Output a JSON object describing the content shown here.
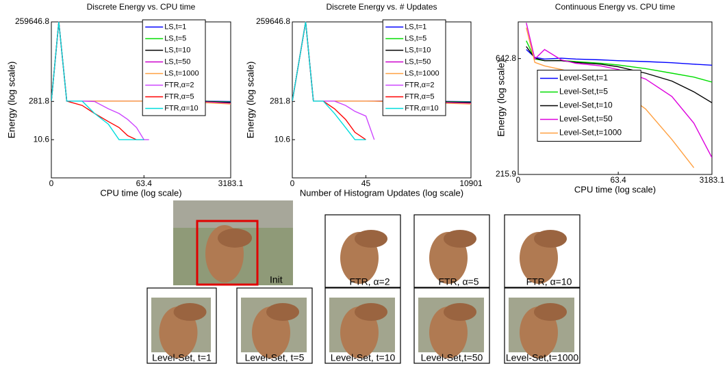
{
  "chart_data": [
    {
      "type": "line",
      "title": "Discrete Energy vs. CPU time",
      "x_label": "CPU time (log scale)",
      "y_label": "Energy (log scale)",
      "xscale": "log",
      "yscale": "log",
      "legend": "upper right",
      "xlim": [
        0,
        3183.1
      ],
      "xticks": [
        0,
        63.4,
        3183.1
      ],
      "ylim": [
        0.4,
        259646.8
      ],
      "yticks": [
        10.6,
        281.8,
        259646.8
      ],
      "x": [
        0,
        0.4,
        1,
        3,
        6,
        12,
        20,
        30,
        45,
        63.4,
        80,
        300,
        1000,
        3183.1
      ],
      "series": [
        {
          "name": "LS,t=1",
          "color": "#0000ff",
          "values": [
            290,
            259646.8,
            290,
            290,
            290,
            290,
            290,
            290,
            290,
            290,
            290,
            290,
            290,
            280
          ]
        },
        {
          "name": "LS,t=5",
          "color": "#00dd00",
          "values": [
            290,
            259646.8,
            290,
            290,
            290,
            290,
            290,
            290,
            290,
            290,
            290,
            290,
            285,
            265
          ]
        },
        {
          "name": "LS,t=10",
          "color": "#000000",
          "values": [
            290,
            259646.8,
            290,
            290,
            290,
            290,
            290,
            290,
            290,
            290,
            290,
            290,
            280,
            255
          ]
        },
        {
          "name": "LS,t=50",
          "color": "#cc00cc",
          "values": [
            290,
            259646.8,
            290,
            290,
            290,
            290,
            290,
            290,
            290,
            290,
            290,
            285,
            270,
            240
          ]
        },
        {
          "name": "LS,t=1000",
          "color": "#ffa040",
          "values": [
            290,
            259646.8,
            290,
            290,
            290,
            290,
            290,
            290,
            290,
            290,
            285,
            275,
            255,
            225
          ]
        },
        {
          "name": "FTR,α=2",
          "color": "#cc44ff",
          "values": [
            290,
            259646.8,
            290,
            290,
            280,
            150,
            100,
            60,
            30,
            10.6,
            10.6,
            null,
            null,
            null
          ]
        },
        {
          "name": "FTR,α=5",
          "color": "#ff0000",
          "values": [
            290,
            259646.8,
            290,
            200,
            100,
            50,
            30,
            15,
            10.6,
            10.6,
            null,
            null,
            null,
            null
          ]
        },
        {
          "name": "FTR,α=10",
          "color": "#00dddd",
          "values": [
            290,
            259646.8,
            290,
            290,
            100,
            40,
            10.6,
            10.6,
            10.6,
            10.6,
            null,
            null,
            null,
            null
          ]
        }
      ]
    },
    {
      "type": "line",
      "title": "Discrete Energy vs. # Updates",
      "x_label": "Number of Histogram Updates (log scale)",
      "y_label": "Energy (log scale)",
      "xscale": "log",
      "yscale": "log",
      "legend": "upper right",
      "xlim": [
        0,
        10901
      ],
      "xticks": [
        0,
        45,
        10901
      ],
      "ylim": [
        0.4,
        259646.8
      ],
      "yticks": [
        10.6,
        281.8,
        259646.8
      ],
      "x": [
        0,
        1,
        2,
        4,
        8,
        15,
        25,
        45,
        70,
        200,
        1000,
        10901
      ],
      "series": [
        {
          "name": "LS,t=1",
          "color": "#0000ff",
          "values": [
            290,
            259646.8,
            290,
            290,
            290,
            290,
            290,
            290,
            290,
            290,
            288,
            275
          ]
        },
        {
          "name": "LS,t=5",
          "color": "#00dd00",
          "values": [
            290,
            259646.8,
            290,
            290,
            290,
            290,
            290,
            290,
            290,
            290,
            285,
            265
          ]
        },
        {
          "name": "LS,t=10",
          "color": "#000000",
          "values": [
            290,
            259646.8,
            290,
            290,
            290,
            290,
            290,
            290,
            290,
            290,
            282,
            255
          ]
        },
        {
          "name": "LS,t=50",
          "color": "#cc00cc",
          "values": [
            290,
            259646.8,
            290,
            290,
            290,
            290,
            290,
            290,
            290,
            285,
            270,
            240
          ]
        },
        {
          "name": "LS,t=1000",
          "color": "#ffa040",
          "values": [
            290,
            259646.8,
            290,
            290,
            290,
            290,
            290,
            290,
            288,
            275,
            255,
            225
          ]
        },
        {
          "name": "FTR,α=2",
          "color": "#cc44ff",
          "values": [
            290,
            259646.8,
            290,
            290,
            290,
            200,
            120,
            80,
            10.6,
            null,
            null,
            null
          ]
        },
        {
          "name": "FTR,α=5",
          "color": "#ff0000",
          "values": [
            290,
            259646.8,
            290,
            290,
            150,
            60,
            20,
            10.6,
            null,
            null,
            null,
            null
          ]
        },
        {
          "name": "FTR,α=10",
          "color": "#00dddd",
          "values": [
            290,
            259646.8,
            290,
            290,
            100,
            30,
            10.6,
            10.6,
            null,
            null,
            null,
            null
          ]
        }
      ]
    },
    {
      "type": "line",
      "title": "Continuous Energy vs. CPU time",
      "x_label": "CPU time (log scale)",
      "y_label": "Energy (log scale)",
      "xscale": "log",
      "yscale": "log",
      "legend": "center left",
      "xlim": [
        0,
        3183.1
      ],
      "xticks": [
        0,
        63.4,
        3183.1
      ],
      "ylim": [
        215.9,
        908
      ],
      "yticks": [
        215.9,
        642.8
      ],
      "x": [
        0.4,
        1,
        2,
        5,
        10,
        30,
        63.4,
        200,
        600,
        1500,
        3183.1
      ],
      "series": [
        {
          "name": "Level-Set,t=1",
          "color": "#0000ff",
          "values": [
            700,
            650,
            640,
            645,
            640,
            635,
            630,
            625,
            618,
            610,
            604
          ]
        },
        {
          "name": "Level-Set,t=5",
          "color": "#00dd00",
          "values": [
            760,
            640,
            630,
            632,
            625,
            615,
            605,
            585,
            560,
            540,
            515
          ]
        },
        {
          "name": "Level-Set,t=10",
          "color": "#000000",
          "values": [
            720,
            645,
            630,
            630,
            620,
            610,
            595,
            560,
            520,
            470,
            424
          ]
        },
        {
          "name": "Level-Set,t=50",
          "color": "#dd00dd",
          "values": [
            900,
            640,
            700,
            635,
            615,
            600,
            580,
            530,
            450,
            350,
            253
          ]
        },
        {
          "name": "Level-Set,t=1000",
          "color": "#ffa040",
          "values": [
            860,
            620,
            600,
            580,
            560,
            520,
            483,
            400,
            300,
            230,
            null
          ]
        }
      ]
    }
  ],
  "images": [
    {
      "label": "Init"
    },
    {
      "label": "FTR, α=2"
    },
    {
      "label": "FTR, α=5"
    },
    {
      "label": "FTR, α=10"
    },
    {
      "label": "Level-Set, t=1"
    },
    {
      "label": "Level-Set, t=5"
    },
    {
      "label": "Level-Set, t=10"
    },
    {
      "label": "Level-Set,t=50"
    },
    {
      "label": "Level-Set,t=1000"
    }
  ]
}
